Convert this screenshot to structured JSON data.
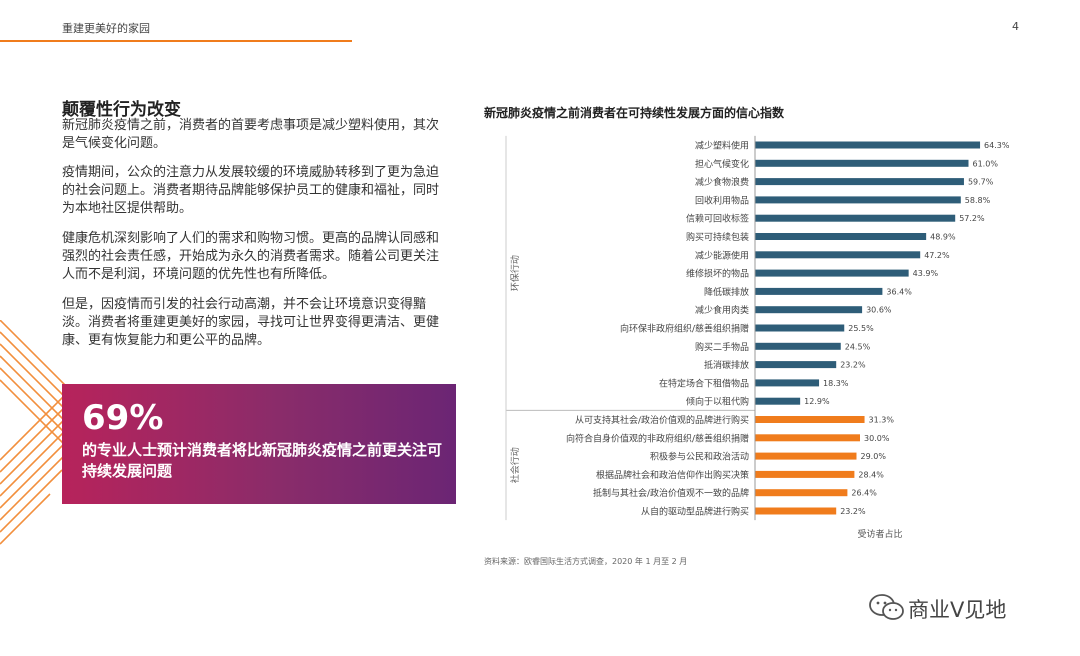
{
  "header": {
    "title": "重建更美好的家园",
    "page_number": "4",
    "accent_color": "#f07c1c"
  },
  "main": {
    "heading": "颠覆性行为改变",
    "paragraphs": [
      "新冠肺炎疫情之前，消费者的首要考虑事项是减少塑料使用，其次是气候变化问题。",
      "疫情期间，公众的注意力从发展较缓的环境威胁转移到了更为急迫的社会问题上。消费者期待品牌能够保护员工的健康和福祉，同时为本地社区提供帮助。",
      "健康危机深刻影响了人们的需求和购物习惯。更高的品牌认同感和强烈的社会责任感，开始成为永久的消费者需求。随着公司更关注人而不是利润，环境问题的优先性也有所降低。",
      "但是，因疫情而引发的社会行动高潮，并不会让环境意识变得黯淡。消费者将重建更美好的家园，寻找可让世界变得更清洁、更健康、更有恢复能力和更公平的品牌。"
    ]
  },
  "stat": {
    "value": "69%",
    "text": "的专业人士预计消费者将比新冠肺炎疫情之前更关注可持续发展问题"
  },
  "chart_data": {
    "type": "bar",
    "orientation": "horizontal",
    "title": "新冠肺炎疫情之前消费者在可持续性发展方面的信心指数",
    "xlabel": "受访者占比",
    "source": "资料来源：欧睿国际生活方式调查，2020 年 1 月至 2 月",
    "xlim": [
      0,
      70
    ],
    "groups": [
      {
        "name": "环保行动",
        "color": "#2e5d78",
        "categories": [
          "减少塑料使用",
          "担心气候变化",
          "减少食物浪费",
          "回收利用物品",
          "信赖可回收标签",
          "购买可持续包装",
          "减少能源使用",
          "维修损坏的物品",
          "降低碳排放",
          "减少食用肉类",
          "向环保非政府组织/慈善组织捐赠",
          "购买二手物品",
          "抵消碳排放",
          "在特定场合下租借物品",
          "倾向于以租代购"
        ],
        "values": [
          64.3,
          61.0,
          59.7,
          58.8,
          57.2,
          48.9,
          47.2,
          43.9,
          36.4,
          30.6,
          25.5,
          24.5,
          23.2,
          18.3,
          12.9
        ],
        "labels": [
          "64.3%",
          "61.0%",
          "59.7%",
          "58.8%",
          "57.2%",
          "48.9%",
          "47.2%",
          "43.9%",
          "36.4%",
          "30.6%",
          "25.5%",
          "24.5%",
          "23.2%",
          "18.3%",
          "12.9%"
        ]
      },
      {
        "name": "社会行动",
        "color": "#f07c1c",
        "categories": [
          "从可支持其社会/政治价值观的品牌进行购买",
          "向符合自身价值观的非政府组织/慈善组织捐赠",
          "积极参与公民和政治活动",
          "根据品牌社会和政治信仰作出购买决策",
          "抵制与其社会/政治价值观不一致的品牌",
          "从自的驱动型品牌进行购买"
        ],
        "values": [
          31.3,
          30.0,
          29.0,
          28.4,
          26.4,
          23.2
        ],
        "labels": [
          "31.3%",
          "30.0%",
          "29.0%",
          "28.4%",
          "26.4%",
          "23.2%"
        ]
      }
    ]
  },
  "watermark": {
    "text": "商业V见地"
  },
  "colors": {
    "stat_gradient_start": "#b7235b",
    "stat_gradient_end": "#6b2574"
  }
}
